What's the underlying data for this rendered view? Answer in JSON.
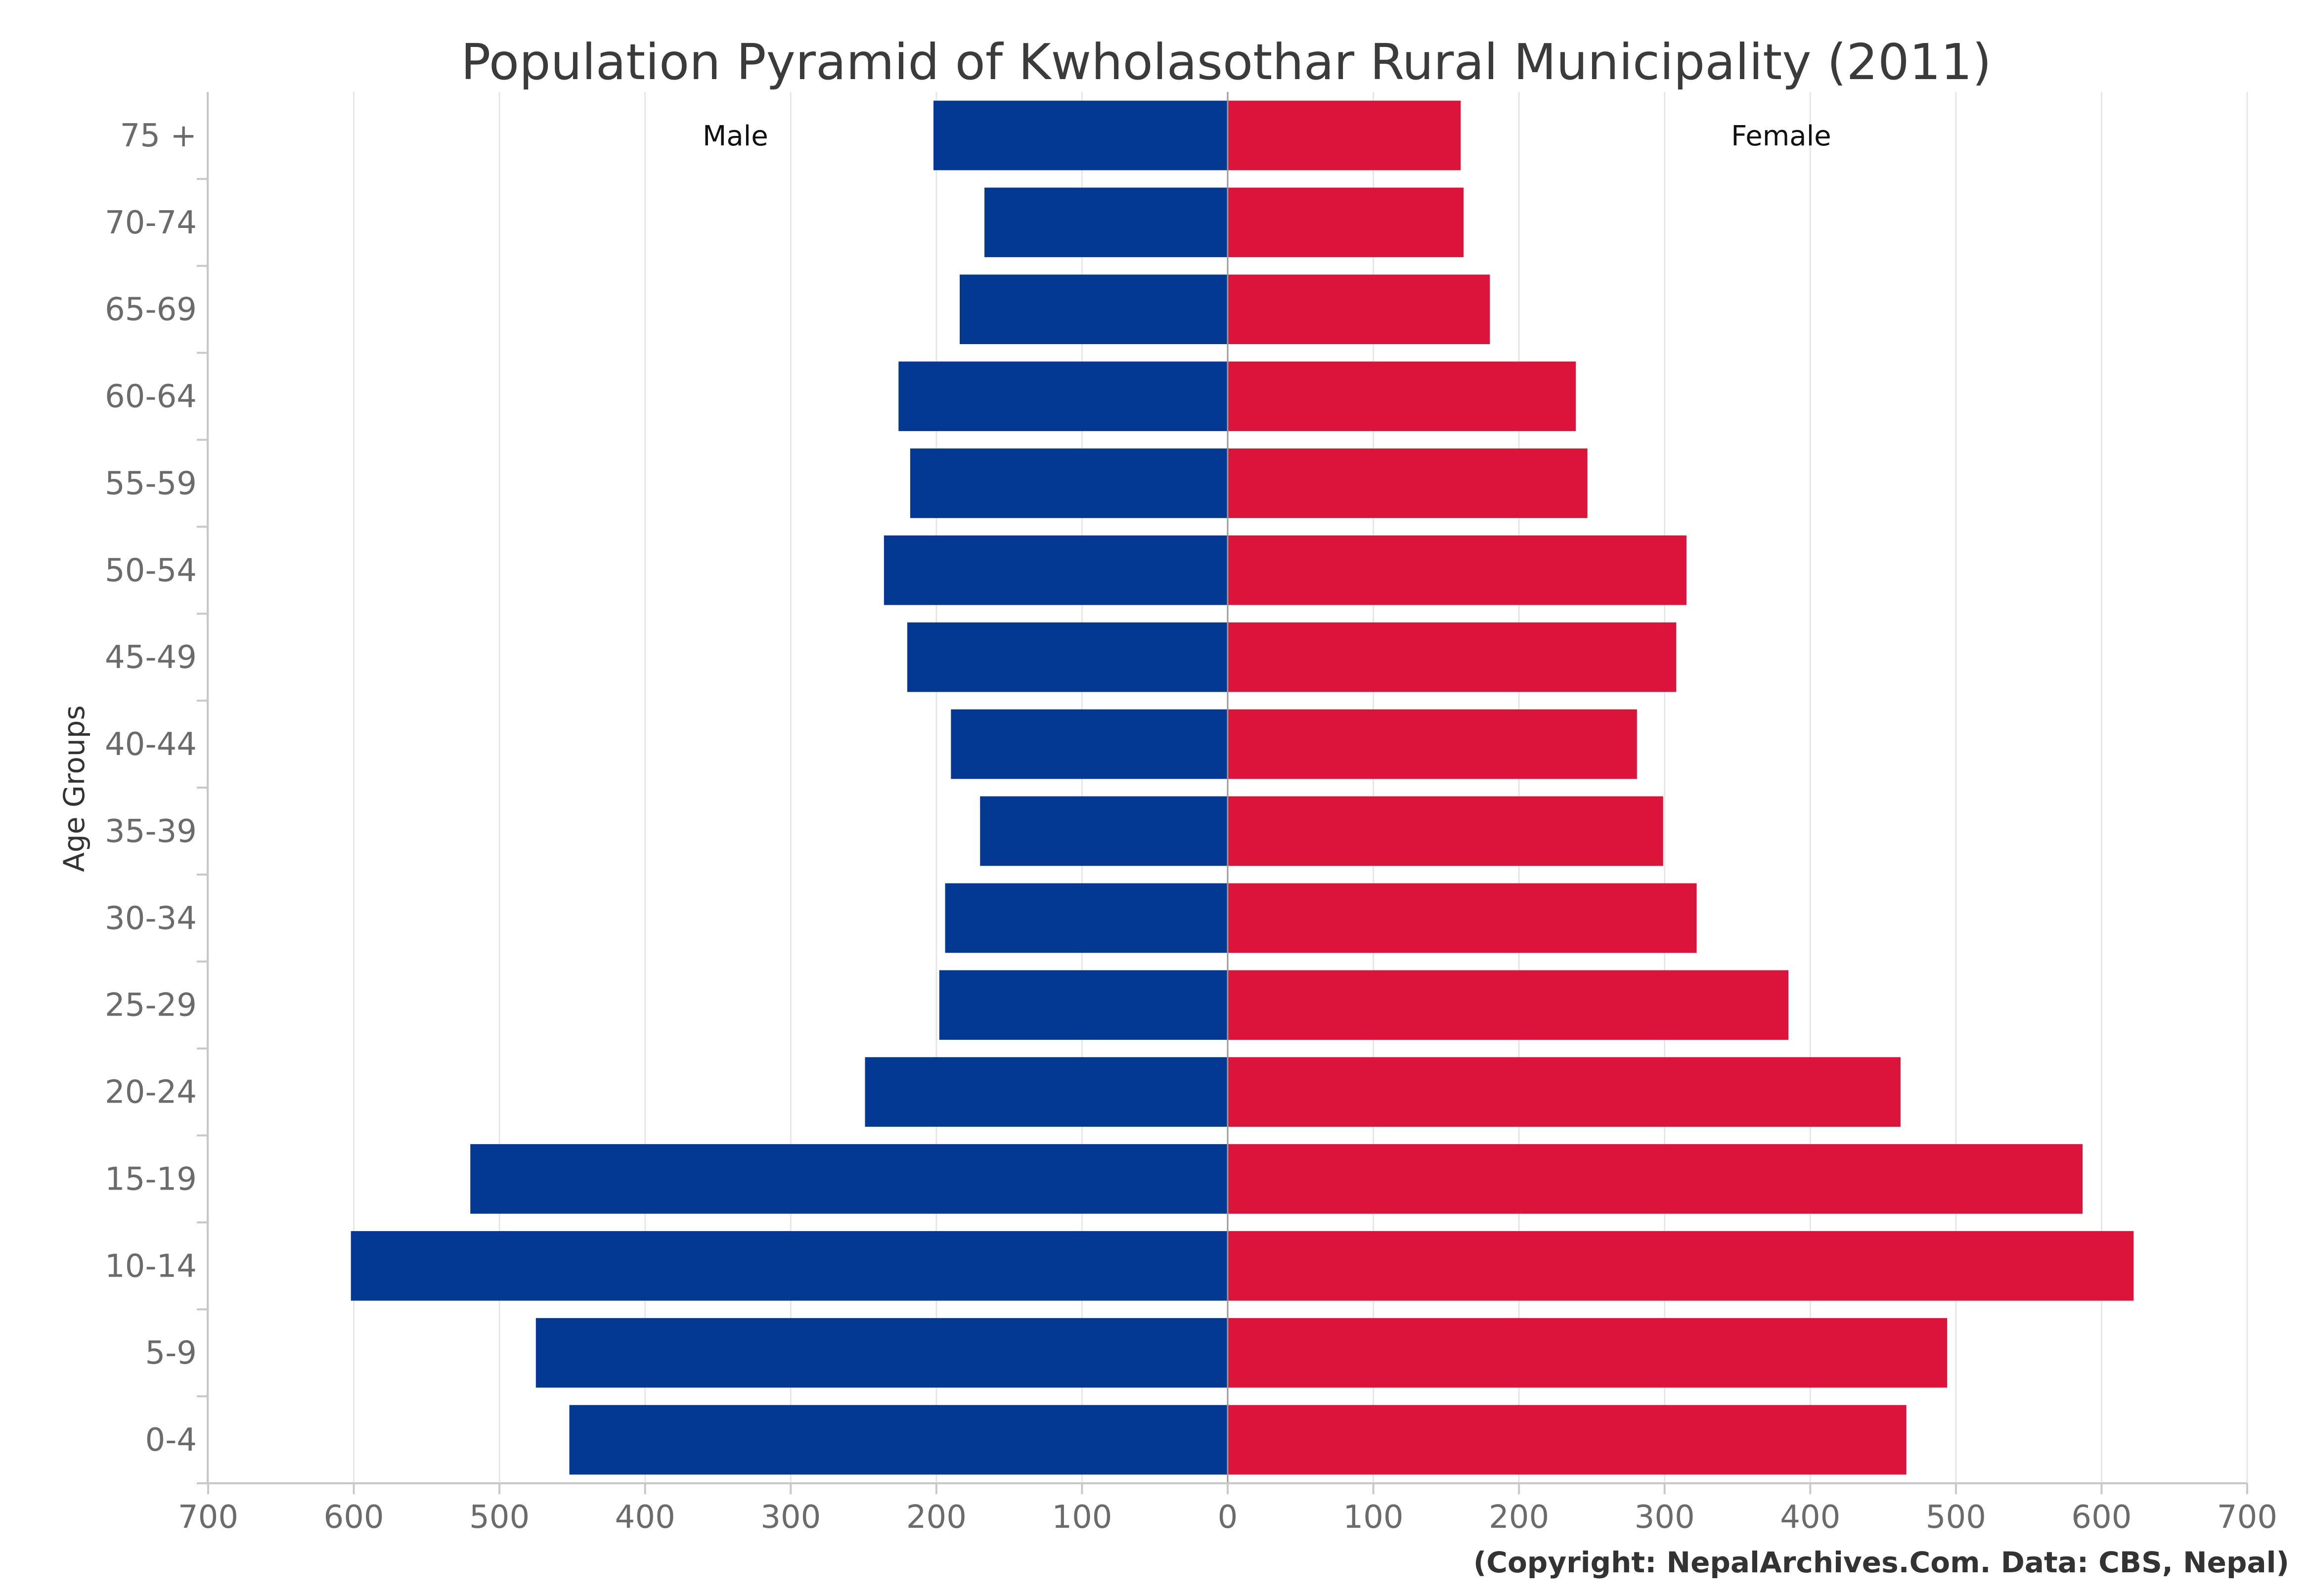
{
  "chart_data": {
    "type": "bar",
    "orientation": "horizontal",
    "title": "Population Pyramid of Kwholasothar Rural Municipality (2011)",
    "ylabel": "Age Groups",
    "xlabel": "",
    "xlim": [
      -700,
      700
    ],
    "x_ticks": [
      "700",
      "600",
      "500",
      "400",
      "300",
      "200",
      "100",
      "0",
      "100",
      "200",
      "300",
      "400",
      "500",
      "600",
      "700"
    ],
    "categories": [
      "0-4",
      "5-9",
      "10-14",
      "15-19",
      "20-24",
      "25-29",
      "30-34",
      "35-39",
      "40-44",
      "45-49",
      "50-54",
      "55-59",
      "60-64",
      "65-69",
      "70-74",
      "75 +"
    ],
    "series": [
      {
        "name": "Male",
        "color": "#033893",
        "values": [
          452,
          475,
          602,
          520,
          249,
          198,
          194,
          170,
          190,
          220,
          236,
          218,
          226,
          184,
          167,
          202
        ]
      },
      {
        "name": "Female",
        "color": "#dc143c",
        "values": [
          466,
          494,
          622,
          587,
          462,
          385,
          322,
          299,
          281,
          308,
          315,
          247,
          239,
          180,
          162,
          160
        ]
      }
    ],
    "grid": true,
    "credit": "(Copyright: NepalArchives.Com. Data: CBS, Nepal)"
  }
}
